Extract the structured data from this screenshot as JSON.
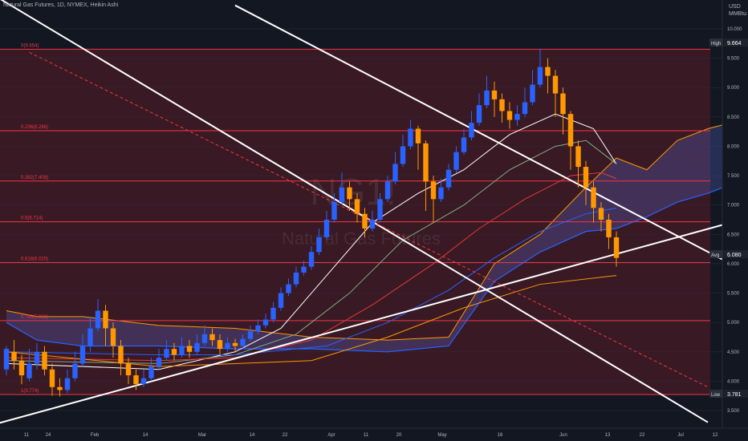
{
  "header": {
    "title": "Natural Gas Futures, 1D, NYMEX, Heikin Ashi"
  },
  "price_axis": {
    "unit_line1": "USD",
    "unit_line2": "MMBtu"
  },
  "watermark": {
    "symbol": "NG1!",
    "name": "Natural Gas Futures"
  },
  "badges": {
    "high_label": "High",
    "high_value": "9.664",
    "avg_label": "Avg",
    "avg_value": "6.080",
    "low_label": "Low",
    "low_value": "3.781"
  },
  "colors": {
    "bull": "#2962ff",
    "bear": "#ff9800",
    "fib": "#f23645",
    "trendline": "#ffffff",
    "cloud": "#5b6bd6",
    "zone": "#5a1c26"
  },
  "chart_data": {
    "type": "candlestick",
    "style": "Heikin Ashi",
    "ylim": [
      3.2,
      10.3
    ],
    "y_ticks": [
      "10.000",
      "9.500",
      "9.000",
      "8.500",
      "8.000",
      "7.500",
      "7.000",
      "6.500",
      "6.000",
      "5.500",
      "5.000",
      "4.500",
      "4.000",
      "3.500"
    ],
    "x_ticks": [
      "11",
      "24",
      "Feb",
      "14",
      "Mar",
      "14",
      "22",
      "Apr",
      "11",
      "20",
      "May",
      "16",
      "Jun",
      "13",
      "22",
      "Jul",
      "12"
    ],
    "fib_levels": [
      {
        "label": "0(9.654)",
        "value": 9.654
      },
      {
        "label": "0.236(8.266)",
        "value": 8.266
      },
      {
        "label": "0.382(7.408)",
        "value": 7.408
      },
      {
        "label": "0.5(6.714)",
        "value": 6.714
      },
      {
        "label": "0.618(6.020)",
        "value": 6.02
      },
      {
        "label": "0.786(5.032)",
        "value": 5.032
      },
      {
        "label": "1(3.774)",
        "value": 3.774
      }
    ],
    "candles": [
      [
        4.2,
        4.55,
        4.1,
        4.6
      ],
      [
        4.5,
        4.35,
        4.2,
        4.7
      ],
      [
        4.35,
        4.1,
        3.95,
        4.45
      ],
      [
        4.05,
        4.3,
        4.0,
        4.55
      ],
      [
        4.3,
        4.5,
        4.2,
        4.65
      ],
      [
        4.5,
        4.2,
        4.1,
        4.6
      ],
      [
        4.2,
        3.9,
        3.75,
        4.3
      ],
      [
        3.9,
        3.85,
        3.74,
        4.05
      ],
      [
        3.85,
        4.05,
        3.8,
        4.2
      ],
      [
        4.05,
        4.3,
        4.0,
        4.5
      ],
      [
        4.3,
        4.6,
        4.25,
        4.8
      ],
      [
        4.6,
        4.9,
        4.5,
        5.1
      ],
      [
        4.9,
        5.2,
        4.85,
        5.4
      ],
      [
        5.2,
        4.9,
        4.6,
        5.3
      ],
      [
        4.9,
        4.6,
        4.4,
        5.0
      ],
      [
        4.6,
        4.3,
        4.1,
        4.7
      ],
      [
        4.3,
        4.1,
        3.95,
        4.4
      ],
      [
        4.1,
        3.95,
        3.85,
        4.2
      ],
      [
        3.95,
        4.05,
        3.9,
        4.2
      ],
      [
        4.05,
        4.25,
        4.0,
        4.4
      ],
      [
        4.25,
        4.4,
        4.2,
        4.55
      ],
      [
        4.4,
        4.55,
        4.35,
        4.7
      ],
      [
        4.55,
        4.45,
        4.35,
        4.65
      ],
      [
        4.45,
        4.6,
        4.4,
        4.75
      ],
      [
        4.6,
        4.5,
        4.4,
        4.7
      ],
      [
        4.5,
        4.65,
        4.45,
        4.8
      ],
      [
        4.65,
        4.8,
        4.6,
        4.95
      ],
      [
        4.8,
        4.7,
        4.6,
        4.9
      ],
      [
        4.7,
        4.55,
        4.45,
        4.8
      ],
      [
        4.55,
        4.65,
        4.5,
        4.75
      ],
      [
        4.65,
        4.6,
        4.5,
        4.72
      ],
      [
        4.6,
        4.72,
        4.55,
        4.8
      ],
      [
        4.72,
        4.85,
        4.68,
        4.95
      ],
      [
        4.85,
        4.95,
        4.8,
        5.05
      ],
      [
        4.95,
        5.05,
        4.9,
        5.15
      ],
      [
        5.05,
        5.25,
        5.0,
        5.35
      ],
      [
        5.25,
        5.5,
        5.2,
        5.6
      ],
      [
        5.5,
        5.65,
        5.45,
        5.75
      ],
      [
        5.65,
        5.85,
        5.6,
        5.95
      ],
      [
        5.85,
        5.95,
        5.8,
        6.05
      ],
      [
        5.95,
        6.2,
        5.9,
        6.3
      ],
      [
        6.2,
        6.45,
        6.15,
        6.6
      ],
      [
        6.45,
        6.75,
        6.4,
        6.9
      ],
      [
        6.75,
        7.05,
        6.7,
        7.2
      ],
      [
        7.05,
        7.3,
        7.0,
        7.55
      ],
      [
        7.3,
        7.1,
        6.9,
        7.4
      ],
      [
        7.1,
        6.85,
        6.7,
        7.2
      ],
      [
        6.85,
        6.6,
        6.45,
        6.95
      ],
      [
        6.6,
        6.75,
        6.55,
        6.9
      ],
      [
        6.75,
        7.1,
        6.7,
        7.2
      ],
      [
        7.1,
        7.4,
        7.05,
        7.5
      ],
      [
        7.4,
        7.7,
        7.35,
        7.9
      ],
      [
        7.7,
        8.0,
        7.65,
        8.2
      ],
      [
        8.0,
        8.3,
        7.95,
        8.45
      ],
      [
        8.3,
        8.05,
        7.6,
        8.35
      ],
      [
        8.05,
        7.4,
        6.9,
        8.1
      ],
      [
        7.4,
        7.1,
        6.7,
        7.5
      ],
      [
        7.1,
        7.3,
        7.05,
        7.45
      ],
      [
        7.3,
        7.6,
        7.25,
        7.7
      ],
      [
        7.6,
        7.9,
        7.55,
        8.0
      ],
      [
        7.9,
        8.15,
        7.85,
        8.3
      ],
      [
        8.15,
        8.4,
        8.1,
        8.6
      ],
      [
        8.4,
        8.7,
        8.35,
        8.9
      ],
      [
        8.7,
        8.95,
        8.65,
        9.2
      ],
      [
        8.95,
        8.8,
        8.5,
        9.1
      ],
      [
        8.8,
        8.6,
        8.4,
        8.9
      ],
      [
        8.6,
        8.45,
        8.3,
        8.75
      ],
      [
        8.45,
        8.55,
        8.35,
        8.7
      ],
      [
        8.55,
        8.75,
        8.5,
        9.0
      ],
      [
        8.75,
        9.05,
        8.7,
        9.3
      ],
      [
        9.05,
        9.35,
        9.0,
        9.66
      ],
      [
        9.35,
        9.2,
        8.9,
        9.5
      ],
      [
        9.2,
        8.9,
        8.5,
        9.3
      ],
      [
        8.9,
        8.55,
        8.2,
        9.0
      ],
      [
        8.55,
        8.0,
        7.6,
        8.6
      ],
      [
        8.0,
        7.65,
        7.3,
        8.1
      ],
      [
        7.65,
        7.3,
        7.0,
        7.75
      ],
      [
        7.3,
        6.95,
        6.7,
        7.4
      ],
      [
        6.95,
        6.75,
        6.55,
        7.05
      ],
      [
        6.75,
        6.45,
        6.25,
        6.85
      ],
      [
        6.45,
        6.1,
        5.95,
        6.55
      ]
    ],
    "moving_averages": [
      {
        "color": "#ffffff",
        "values": [
          [
            0,
            4.3
          ],
          [
            20,
            4.2
          ],
          [
            30,
            4.5
          ],
          [
            36,
            4.9
          ],
          [
            42,
            5.8
          ],
          [
            48,
            6.7
          ],
          [
            54,
            7.2
          ],
          [
            60,
            7.6
          ],
          [
            66,
            8.2
          ],
          [
            72,
            8.55
          ],
          [
            77,
            8.3
          ],
          [
            80,
            7.7
          ]
        ]
      },
      {
        "color": "#7fae84",
        "values": [
          [
            0,
            4.35
          ],
          [
            20,
            4.3
          ],
          [
            30,
            4.45
          ],
          [
            38,
            4.8
          ],
          [
            45,
            5.5
          ],
          [
            52,
            6.4
          ],
          [
            60,
            7.0
          ],
          [
            66,
            7.6
          ],
          [
            72,
            8.0
          ],
          [
            76,
            8.1
          ],
          [
            80,
            7.7
          ]
        ]
      },
      {
        "color": "#e53935",
        "values": [
          [
            0,
            4.4
          ],
          [
            20,
            4.35
          ],
          [
            30,
            4.4
          ],
          [
            40,
            4.7
          ],
          [
            48,
            5.3
          ],
          [
            56,
            6.0
          ],
          [
            62,
            6.6
          ],
          [
            68,
            7.1
          ],
          [
            74,
            7.5
          ],
          [
            78,
            7.55
          ],
          [
            80,
            7.45
          ]
        ]
      },
      {
        "color": "#2962ff",
        "values": [
          [
            0,
            4.5
          ],
          [
            20,
            4.45
          ],
          [
            30,
            4.45
          ],
          [
            42,
            4.6
          ],
          [
            50,
            5.0
          ],
          [
            58,
            5.55
          ],
          [
            64,
            6.1
          ],
          [
            70,
            6.55
          ],
          [
            76,
            6.85
          ],
          [
            80,
            6.95
          ]
        ]
      },
      {
        "color": "#ff9800",
        "values": [
          [
            0,
            4.5
          ],
          [
            20,
            4.25
          ],
          [
            40,
            4.35
          ],
          [
            50,
            4.75
          ],
          [
            60,
            5.25
          ],
          [
            70,
            5.65
          ],
          [
            80,
            5.8
          ]
        ]
      }
    ],
    "cloud": {
      "upper": [
        [
          0,
          5.2
        ],
        [
          4,
          5.1
        ],
        [
          10,
          5.1
        ],
        [
          20,
          4.95
        ],
        [
          30,
          4.9
        ],
        [
          40,
          4.75
        ],
        [
          50,
          4.7
        ],
        [
          58,
          4.75
        ],
        [
          64,
          6.0
        ],
        [
          70,
          6.5
        ],
        [
          76,
          7.3
        ],
        [
          80,
          7.8
        ],
        [
          84,
          7.6
        ],
        [
          88,
          8.1
        ],
        [
          92,
          8.3
        ],
        [
          95,
          8.4
        ]
      ],
      "lower": [
        [
          0,
          5.0
        ],
        [
          4,
          4.7
        ],
        [
          10,
          4.6
        ],
        [
          20,
          4.6
        ],
        [
          30,
          4.55
        ],
        [
          40,
          4.55
        ],
        [
          50,
          4.5
        ],
        [
          58,
          4.6
        ],
        [
          64,
          5.7
        ],
        [
          70,
          6.2
        ],
        [
          76,
          6.55
        ],
        [
          80,
          6.6
        ],
        [
          84,
          6.8
        ],
        [
          88,
          7.05
        ],
        [
          92,
          7.2
        ],
        [
          95,
          7.35
        ]
      ]
    },
    "trendlines": [
      {
        "style": "solid",
        "from": [
          -2,
          10.6
        ],
        "to": [
          92,
          3.3
        ]
      },
      {
        "style": "solid",
        "from": [
          30,
          10.4
        ],
        "to": [
          95,
          6.0
        ]
      },
      {
        "style": "solid",
        "from": [
          -2,
          3.25
        ],
        "to": [
          95,
          6.7
        ]
      },
      {
        "style": "dashed",
        "from": [
          3,
          9.6
        ],
        "to": [
          92,
          3.9
        ]
      }
    ]
  }
}
